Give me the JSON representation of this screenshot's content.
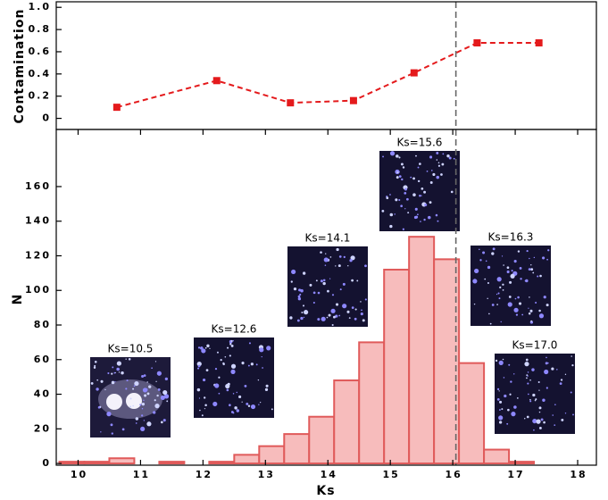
{
  "chart_data": [
    {
      "type": "line",
      "ylabel": "Contamination",
      "x": [
        10.62,
        12.22,
        13.4,
        14.41,
        15.38,
        16.39,
        17.38
      ],
      "y": [
        0.1,
        0.34,
        0.14,
        0.16,
        0.41,
        0.68,
        0.68
      ],
      "color": "#e41a1c",
      "xlim": [
        9.65,
        18.3
      ],
      "ylim": [
        -0.1,
        1.05
      ],
      "yticks": [
        0,
        0.2,
        0.4,
        0.6,
        0.8,
        {
          "value": 1,
          "label": "1.0"
        }
      ],
      "vline": 16.05
    },
    {
      "type": "histogram",
      "xlabel": "Ks",
      "ylabel": "N",
      "bins": [
        9.7,
        10.1,
        10.5,
        10.9,
        11.3,
        11.7,
        12.1,
        12.5,
        12.9,
        13.3,
        13.7,
        14.1,
        14.5,
        14.9,
        15.3,
        15.7,
        16.1,
        16.5,
        16.9,
        17.3
      ],
      "values": [
        1,
        1,
        3,
        0,
        1,
        0,
        1,
        5,
        10,
        17,
        27,
        48,
        70,
        112,
        131,
        118,
        58,
        8,
        1
      ],
      "color": "#f7bcbc",
      "edgecolor": "#e05a5a",
      "xlim": [
        9.65,
        18.3
      ],
      "ylim": [
        -1,
        193
      ],
      "xticks": [
        10,
        11,
        12,
        13,
        14,
        15,
        16,
        17,
        18
      ],
      "yticks": [
        0,
        20,
        40,
        60,
        80,
        100,
        120,
        140,
        160
      ],
      "vline": 16.05,
      "annotations": [
        "Ks=10.5",
        "Ks=12.6",
        "Ks=14.1",
        "Ks=15.6",
        "Ks=16.3",
        "Ks=17.0"
      ]
    }
  ]
}
